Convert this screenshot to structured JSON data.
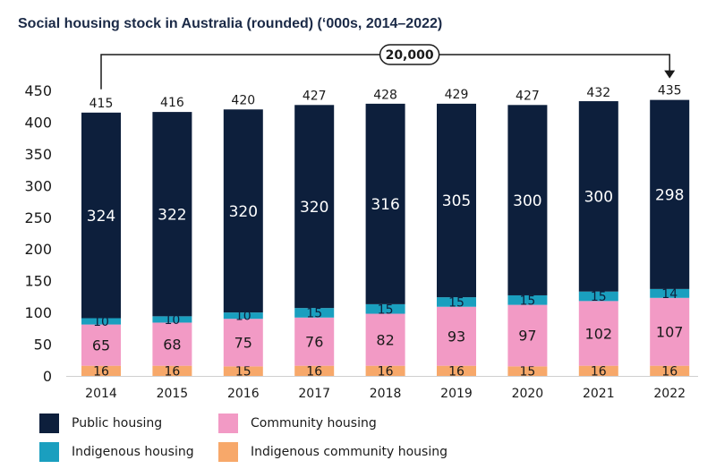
{
  "title": "Social housing stock in Australia (rounded) (‘000s, 2014–2022)",
  "annotation": "20,000",
  "colors": {
    "public": "#0d1f3c",
    "indigenous": "#1a9fbf",
    "community": "#f29ac5",
    "indigenous_community": "#f7a86a"
  },
  "legend": [
    {
      "key": "public",
      "label": "Public housing"
    },
    {
      "key": "community",
      "label": "Community housing"
    },
    {
      "key": "indigenous",
      "label": "Indigenous housing"
    },
    {
      "key": "indigenous_community",
      "label": "Indigenous community housing"
    }
  ],
  "chart_data": {
    "type": "bar",
    "stacked": true,
    "title": "Social housing stock in Australia (rounded) (‘000s, 2014–2022)",
    "categories": [
      "2014",
      "2015",
      "2016",
      "2017",
      "2018",
      "2019",
      "2020",
      "2021",
      "2022"
    ],
    "series": [
      {
        "key": "indigenous_community",
        "name": "Indigenous community housing",
        "values": [
          16,
          16,
          15,
          16,
          16,
          16,
          15,
          16,
          16
        ]
      },
      {
        "key": "community",
        "name": "Community housing",
        "values": [
          65,
          68,
          75,
          76,
          82,
          93,
          97,
          102,
          107
        ]
      },
      {
        "key": "indigenous",
        "name": "Indigenous housing",
        "values": [
          10,
          10,
          10,
          15,
          15,
          15,
          15,
          15,
          14
        ]
      },
      {
        "key": "public",
        "name": "Public housing",
        "values": [
          324,
          322,
          320,
          320,
          316,
          305,
          300,
          300,
          298
        ]
      }
    ],
    "totals": [
      415,
      416,
      420,
      427,
      428,
      429,
      427,
      432,
      435
    ],
    "ylim": [
      0,
      450
    ],
    "yticks": [
      0,
      50,
      100,
      150,
      200,
      250,
      300,
      350,
      400,
      450
    ],
    "grid": false,
    "legend_position": "bottom",
    "xlabel": "",
    "ylabel": ""
  }
}
